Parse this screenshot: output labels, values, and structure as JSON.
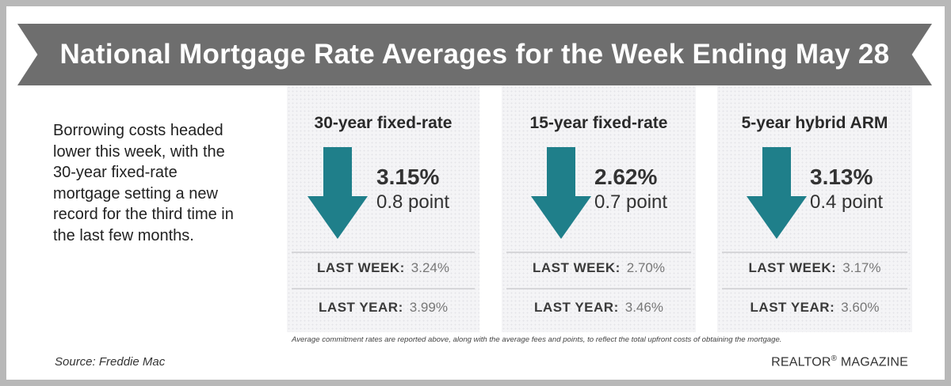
{
  "title": "National Mortgage Rate Averages for the Week Ending May 28",
  "intro": "Borrowing costs headed lower this week, with the 30-year fixed-rate mortgage setting a new record for the third time in the last few months.",
  "colors": {
    "arrow": "#1f7f8a",
    "banner": "#6e6e6e",
    "frame": "#b8b8b8"
  },
  "cards": [
    {
      "title": "30-year fixed-rate",
      "direction": "down",
      "rate": "3.15%",
      "change": "0.8 point",
      "last_week_label": "LAST WEEK:",
      "last_week_value": "3.24%",
      "last_year_label": "LAST YEAR:",
      "last_year_value": "3.99%"
    },
    {
      "title": "15-year fixed-rate",
      "direction": "down",
      "rate": "2.62%",
      "change": "0.7 point",
      "last_week_label": "LAST WEEK:",
      "last_week_value": "2.70%",
      "last_year_label": "LAST YEAR:",
      "last_year_value": "3.46%"
    },
    {
      "title": "5-year hybrid ARM",
      "direction": "down",
      "rate": "3.13%",
      "change": "0.4 point",
      "last_week_label": "LAST WEEK:",
      "last_week_value": "3.17%",
      "last_year_label": "LAST YEAR:",
      "last_year_value": "3.60%"
    }
  ],
  "footnote": "Average commitment rates are reported above, along with the average fees and points, to reflect the total upfront costs of obtaining the mortgage.",
  "source": "Source: Freddie Mac",
  "brand": {
    "name": "REALTOR",
    "mark": "®",
    "suffix": " MAGAZINE"
  }
}
